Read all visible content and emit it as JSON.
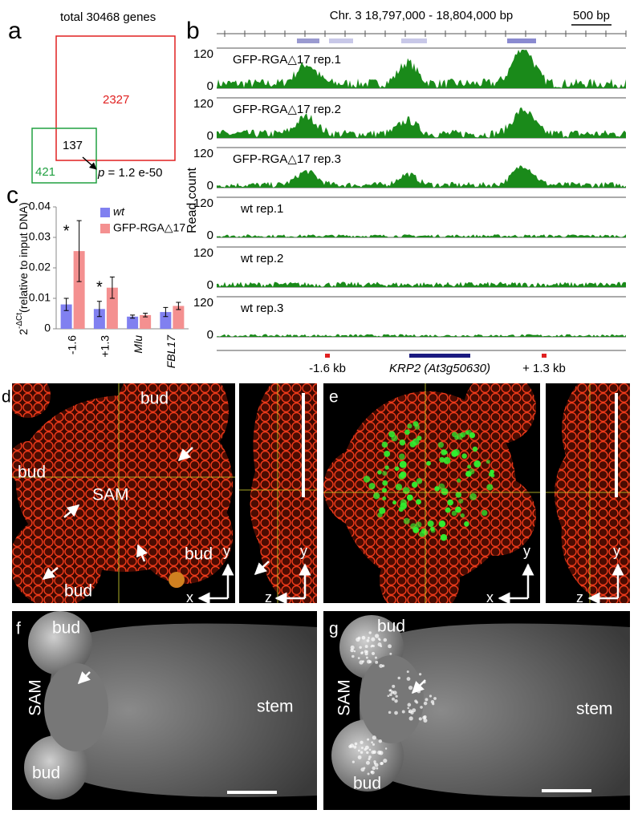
{
  "panel_a": {
    "label": "a",
    "title": "total 30468 genes",
    "set_red": "2327",
    "set_green": "421",
    "overlap": "137",
    "p_symbol": "p",
    "p_text": "= 1.2 e-50"
  },
  "panel_b": {
    "label": "b",
    "region": "Chr. 3 18,797,000 - 18,804,000 bp",
    "scale_bar": "500 bp",
    "y_label": "Read count",
    "tracks": [
      {
        "name": "GFP-RGA△17 rep.1",
        "ymax": 120,
        "ymin": 0
      },
      {
        "name": "GFP-RGA△17 rep.2",
        "ymax": 120,
        "ymin": 0
      },
      {
        "name": "GFP-RGA△17 rep.3",
        "ymax": 120,
        "ymin": 0
      },
      {
        "name": "wt rep.1",
        "ymax": 120,
        "ymin": 0
      },
      {
        "name": "wt rep.2",
        "ymax": 120,
        "ymin": 0
      },
      {
        "name": "wt rep.3",
        "ymax": 120,
        "ymin": 0
      }
    ],
    "markers": [
      "-1.6 kb",
      "+ 1.3 kb"
    ],
    "gene": "KRP2 (At3g50630)"
  },
  "chart_data": {
    "type": "bar",
    "panel_label": "c",
    "y_label_base": "2",
    "y_label_sup": "-ΔCt",
    "y_label_note": "(relative to input DNA)",
    "categories": [
      "-1.6",
      "+1.3",
      "Mlu",
      "FBL17"
    ],
    "series": [
      {
        "name": "wt",
        "color": "#8080f0",
        "values": [
          0.008,
          0.0065,
          0.004,
          0.0055
        ],
        "errors": [
          0.002,
          0.0025,
          0.0005,
          0.0015
        ]
      },
      {
        "name": "GFP-RGA△17",
        "color": "#f49090",
        "values": [
          0.0255,
          0.0135,
          0.0045,
          0.0075
        ],
        "errors": [
          0.01,
          0.0035,
          0.0006,
          0.0012
        ]
      }
    ],
    "annotations": [
      {
        "text": "*",
        "series": 1,
        "category": 0
      },
      {
        "text": "*",
        "series": 1,
        "category": 1
      }
    ],
    "ylim": [
      0,
      0.04
    ],
    "yticks": [
      0,
      0.01,
      0.02,
      0.03,
      0.04
    ]
  },
  "panel_d": {
    "label": "d",
    "regions": [
      "bud",
      "bud",
      "SAM",
      "bud",
      "bud"
    ],
    "axes": [
      "y",
      "x",
      "y",
      "z"
    ]
  },
  "panel_e": {
    "label": "e",
    "axes": [
      "y",
      "x",
      "y",
      "z"
    ]
  },
  "panel_f": {
    "label": "f",
    "regions": [
      "bud",
      "SAM",
      "bud",
      "stem"
    ]
  },
  "panel_g": {
    "label": "g",
    "regions": [
      "bud",
      "SAM",
      "bud",
      "stem"
    ]
  }
}
